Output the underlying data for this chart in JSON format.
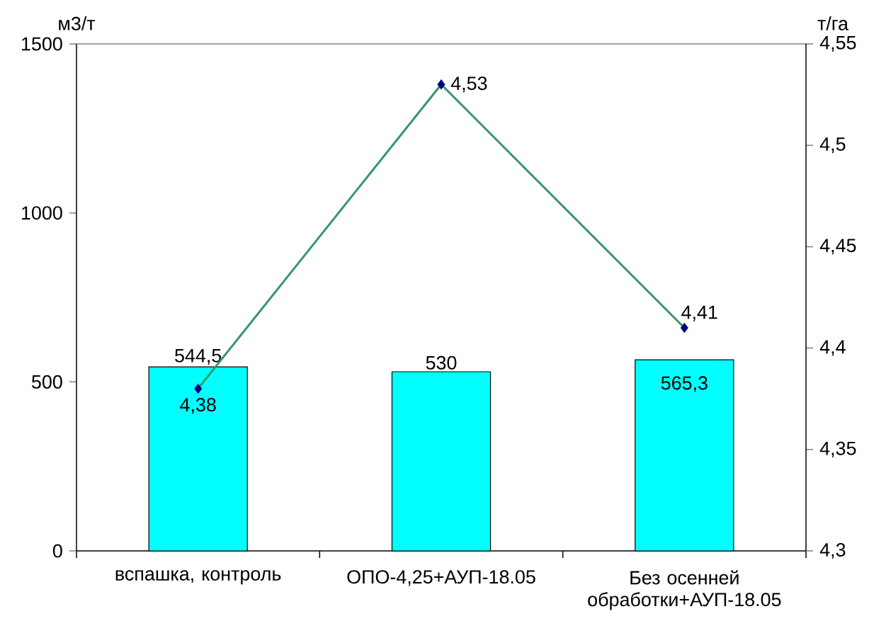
{
  "chart_data": {
    "type": "bar",
    "ylabel": "м3/т",
    "y2label": "т/га",
    "categories": [
      "вспашка, контроль",
      "ОПО-4,25+АУП-18.05",
      "Без осенней обработки+АУП-18.05"
    ],
    "series": [
      {
        "color": "#00ffff",
        "values": [
          544.5,
          530,
          565.3
        ],
        "value_labels": [
          "544,5",
          "530",
          "565,3"
        ]
      },
      {
        "type": "line",
        "axis": "y2",
        "color": "#339966",
        "marker": "diamond",
        "values": [
          4.38,
          4.53,
          4.41
        ],
        "value_labels": [
          "4,38",
          "4,53",
          "4,41"
        ]
      }
    ],
    "ylim": [
      0,
      1500
    ],
    "yticks": [
      0,
      500,
      1000,
      1500
    ],
    "y2lim": [
      4.3,
      4.55
    ],
    "y2ticks": [
      {
        "value": 4.3,
        "label": "4,3"
      },
      {
        "value": 4.35,
        "label": "4,35"
      },
      {
        "value": 4.4,
        "label": "4,4"
      },
      {
        "value": 4.45,
        "label": "4,45"
      },
      {
        "value": 4.5,
        "label": "4,5"
      },
      {
        "value": 4.55,
        "label": "4,55"
      }
    ]
  }
}
